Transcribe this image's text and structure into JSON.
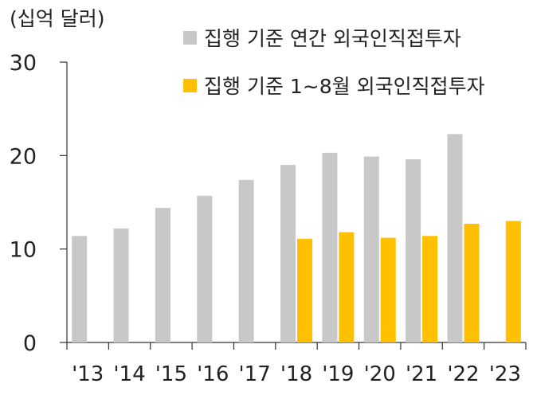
{
  "chart_data": {
    "type": "bar",
    "unit_label": "(십억 달러)",
    "categories": [
      "'13",
      "'14",
      "'15",
      "'16",
      "'17",
      "'18",
      "'19",
      "'20",
      "'21",
      "'22",
      "'23"
    ],
    "y_ticks": [
      "0",
      "10",
      "20",
      "30"
    ],
    "ylim": [
      0,
      30
    ],
    "grid": false,
    "legend_position": "top-right",
    "series": [
      {
        "name": "집행 기준 연간 외국인직접투자",
        "color": "#c8c8c8",
        "values": [
          11.4,
          12.2,
          14.4,
          15.7,
          17.4,
          19.0,
          20.3,
          19.9,
          19.6,
          22.3,
          null
        ]
      },
      {
        "name": "집행 기준 1~8월 외국인직접투자",
        "color": "#ffc000",
        "values": [
          null,
          null,
          null,
          null,
          null,
          11.1,
          11.8,
          11.2,
          11.4,
          12.7,
          13.0
        ]
      }
    ]
  }
}
